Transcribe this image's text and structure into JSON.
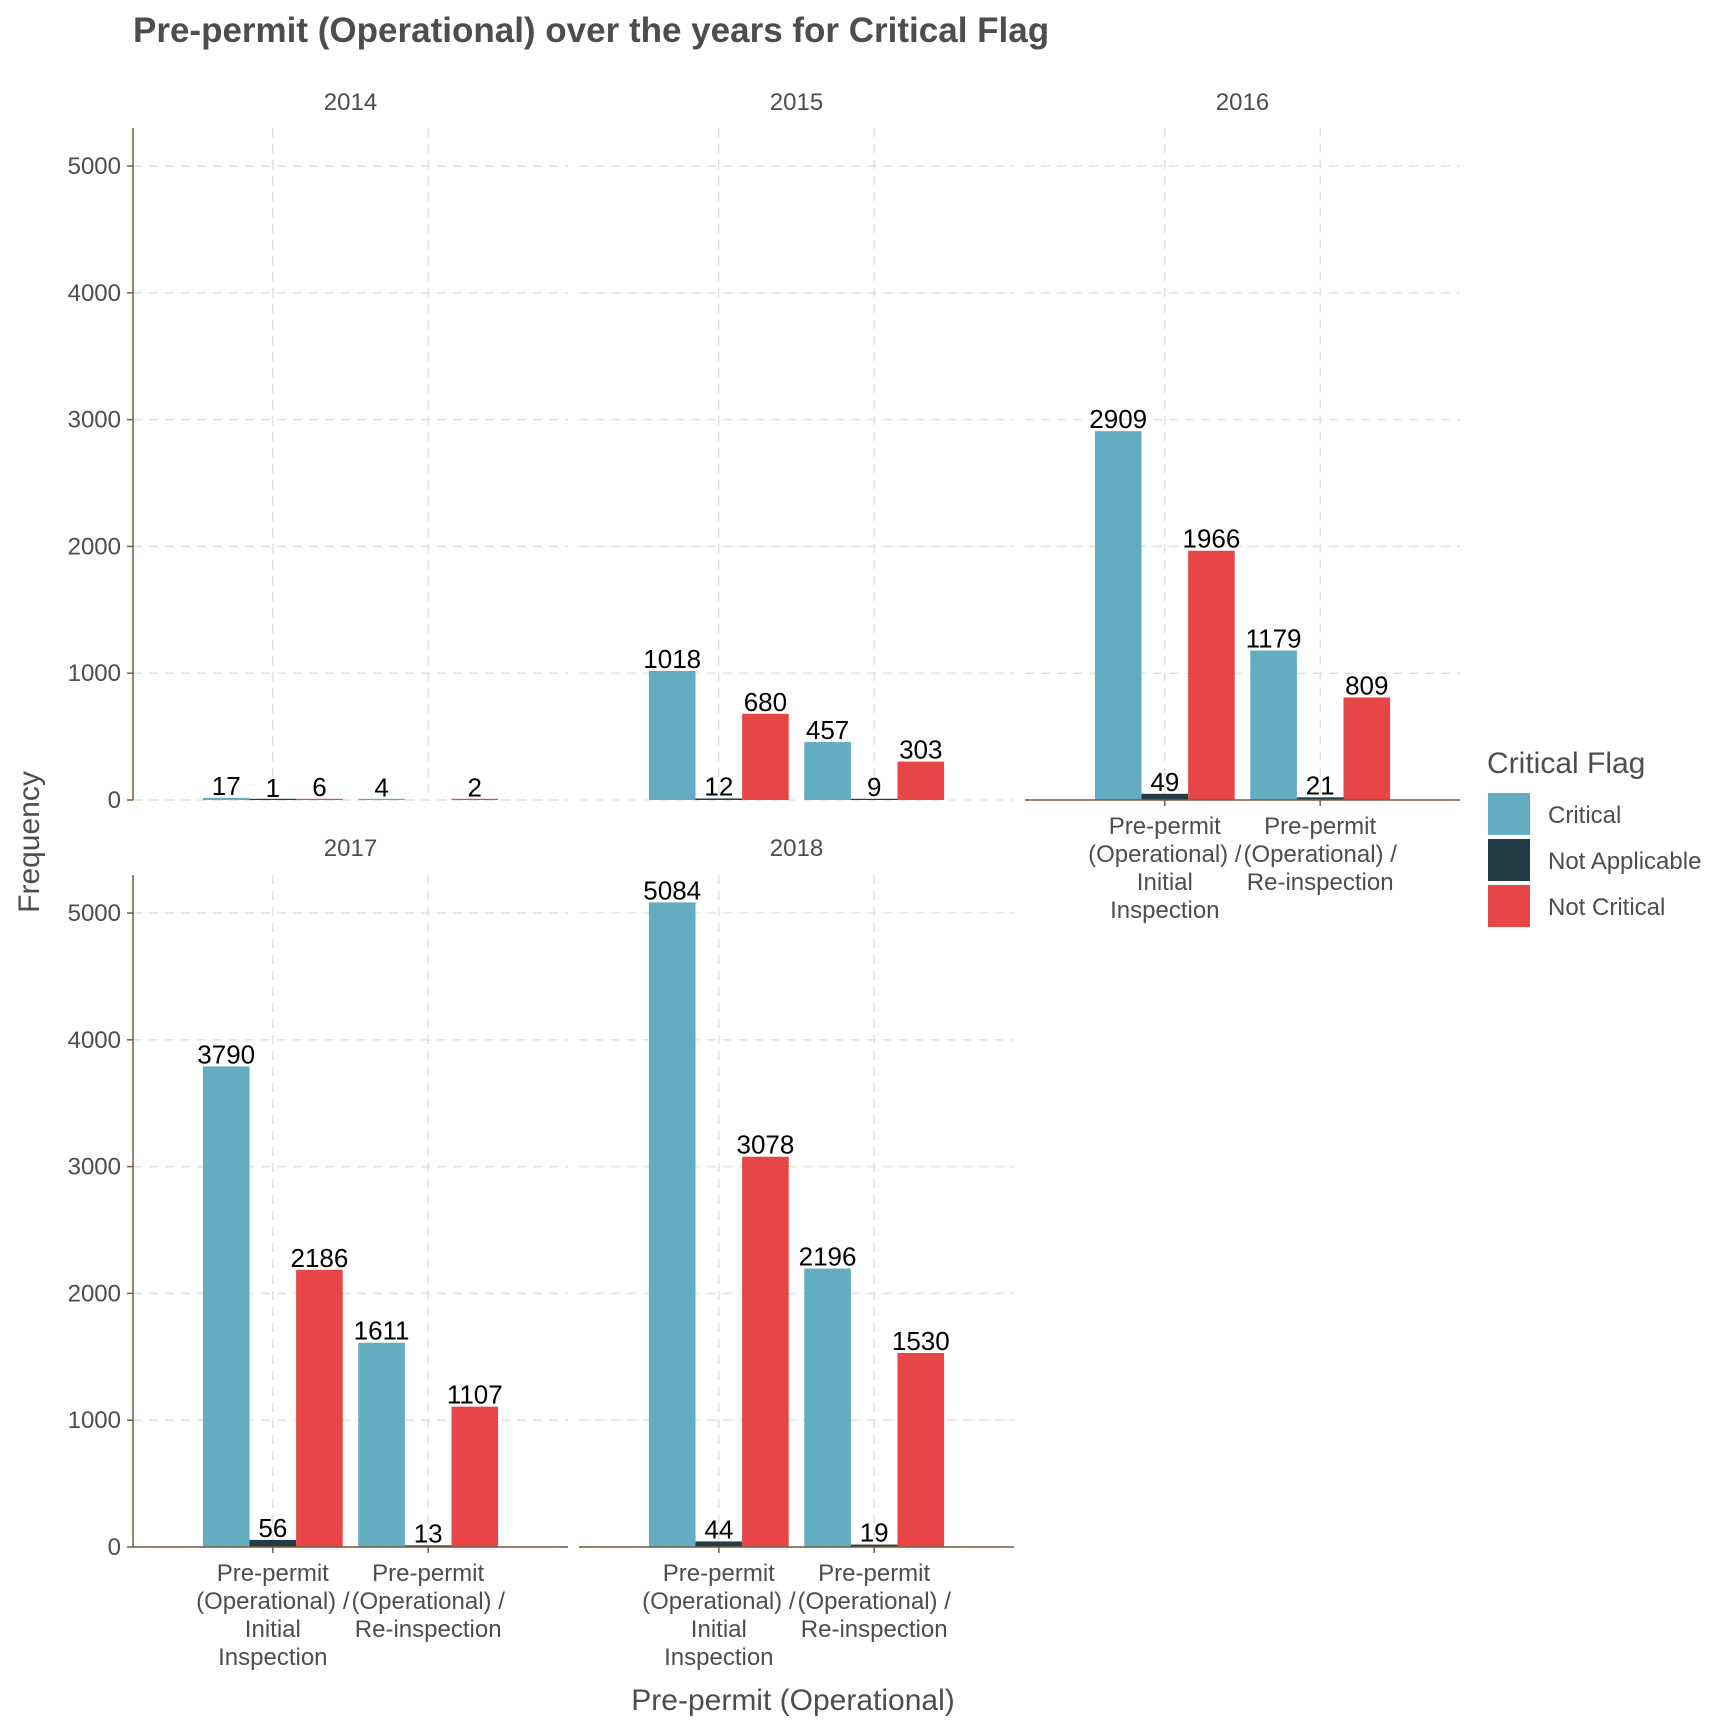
{
  "chart_data": {
    "type": "bar",
    "title": "Pre-permit (Operational) over the years for Critical Flag",
    "xlabel": "Pre-permit (Operational)",
    "ylabel": "Frequency",
    "ylim": [
      0,
      5300
    ],
    "yticks": [
      0,
      1000,
      2000,
      3000,
      4000,
      5000
    ],
    "categories": [
      "Pre-permit (Operational) / Initial Inspection",
      "Pre-permit (Operational) / Re-inspection"
    ],
    "category_tick_lines": [
      [
        "Pre-permit",
        "(Operational) /",
        "Initial",
        "Inspection"
      ],
      [
        "Pre-permit",
        "(Operational) /",
        "Re-inspection"
      ]
    ],
    "grid": true,
    "legend": {
      "title": "Critical Flag",
      "position": "right",
      "entries": [
        {
          "name": "Critical",
          "color": "#64acc2"
        },
        {
          "name": "Not Applicable",
          "color": "#233c45"
        },
        {
          "name": "Not Critical",
          "color": "#e84548"
        }
      ]
    },
    "facets": [
      {
        "label": "2014",
        "series": [
          {
            "name": "Critical",
            "values": [
              17,
              4
            ]
          },
          {
            "name": "Not Applicable",
            "values": [
              1,
              null
            ]
          },
          {
            "name": "Not Critical",
            "values": [
              6,
              2
            ]
          }
        ]
      },
      {
        "label": "2015",
        "series": [
          {
            "name": "Critical",
            "values": [
              1018,
              457
            ]
          },
          {
            "name": "Not Applicable",
            "values": [
              12,
              9
            ]
          },
          {
            "name": "Not Critical",
            "values": [
              680,
              303
            ]
          }
        ]
      },
      {
        "label": "2016",
        "series": [
          {
            "name": "Critical",
            "values": [
              2909,
              1179
            ]
          },
          {
            "name": "Not Applicable",
            "values": [
              49,
              21
            ]
          },
          {
            "name": "Not Critical",
            "values": [
              1966,
              809
            ]
          }
        ]
      },
      {
        "label": "2017",
        "series": [
          {
            "name": "Critical",
            "values": [
              3790,
              1611
            ]
          },
          {
            "name": "Not Applicable",
            "values": [
              56,
              13
            ]
          },
          {
            "name": "Not Critical",
            "values": [
              2186,
              1107
            ]
          }
        ]
      },
      {
        "label": "2018",
        "series": [
          {
            "name": "Critical",
            "values": [
              5084,
              2196
            ]
          },
          {
            "name": "Not Applicable",
            "values": [
              44,
              19
            ]
          },
          {
            "name": "Not Critical",
            "values": [
              3078,
              1530
            ]
          }
        ]
      }
    ]
  }
}
